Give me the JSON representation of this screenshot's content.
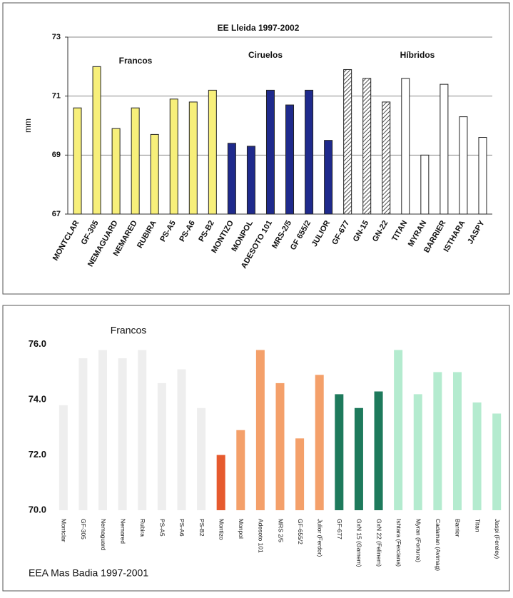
{
  "chart_data": [
    {
      "type": "bar",
      "title": "EE Lleida 1997-2002",
      "ylabel": "mm",
      "categories": [
        "MONTCLAR",
        "GF-305",
        "NEMAGUARD",
        "NEMARED",
        "RUBIRA",
        "PS-A5",
        "PS-A6",
        "PS-B2",
        "MONTIZO",
        "MONPOL",
        "ADESOTO 101",
        "MRS-2/5",
        "GF 655/2",
        "JULIOR",
        "GF-677",
        "GN-15",
        "GN-22",
        "TITAN",
        "MYRAN",
        "BARRIER",
        "ISTHARA",
        "JASPY"
      ],
      "values": [
        70.6,
        72.0,
        69.9,
        70.6,
        69.7,
        70.9,
        70.8,
        71.2,
        69.4,
        69.3,
        71.2,
        70.7,
        71.2,
        69.5,
        71.9,
        71.6,
        70.8,
        71.6,
        69.0,
        71.4,
        70.3,
        69.6
      ],
      "colors": [
        "#f7ef7a",
        "#f7ef7a",
        "#f7ef7a",
        "#f7ef7a",
        "#f7ef7a",
        "#f7ef7a",
        "#f7ef7a",
        "#f7ef7a",
        "#1f2a8c",
        "#1f2a8c",
        "#1f2a8c",
        "#1f2a8c",
        "#1f2a8c",
        "#1f2a8c",
        "#ffffff",
        "#ffffff",
        "#ffffff",
        "#ffffff",
        "#ffffff",
        "#ffffff",
        "#ffffff",
        "#ffffff"
      ],
      "patterns": [
        "solid",
        "solid",
        "solid",
        "solid",
        "solid",
        "solid",
        "solid",
        "solid",
        "solid",
        "solid",
        "solid",
        "solid",
        "solid",
        "solid",
        "hatch",
        "hatch",
        "hatch",
        "solid",
        "solid",
        "solid",
        "solid",
        "solid"
      ],
      "annotations": [
        "Francos",
        "Ciruelos",
        "Híbridos"
      ],
      "ylim": [
        67,
        73
      ],
      "yticks": [
        67,
        69,
        71,
        73
      ],
      "grid": true
    },
    {
      "type": "bar",
      "title": "EEA Mas Badia 1997-2001",
      "categories": [
        "Montclar",
        "GF-305",
        "Nemaguard",
        "Nemared",
        "Rubira",
        "PS-A5",
        "PS-A6",
        "PS-B2",
        "Montizo",
        "Monpol",
        "Adesoto 101",
        "MRS 2/5",
        "GF-655/2",
        "Julior (Ferdor)",
        "GF-677",
        "GxN 15 (Garnem)",
        "GxN 22 (Felinem)",
        "Ishtara (Ferciana)",
        "Myran (Fortuna)",
        "Cadaman (Avimag)",
        "Barrier",
        "Titan",
        "Jaspi (Fereley)"
      ],
      "values": [
        73.8,
        75.5,
        75.8,
        75.5,
        75.8,
        74.6,
        75.1,
        73.7,
        72.0,
        72.9,
        75.8,
        74.6,
        72.6,
        74.9,
        74.2,
        73.7,
        74.3,
        75.8,
        74.2,
        75.0,
        75.0,
        73.9,
        73.5
      ],
      "colors": [
        "#eeeeee",
        "#eeeeee",
        "#eeeeee",
        "#eeeeee",
        "#eeeeee",
        "#eeeeee",
        "#eeeeee",
        "#eeeeee",
        "#e65a2e",
        "#f4a06a",
        "#f4a06a",
        "#f4a06a",
        "#f4a06a",
        "#f4a06a",
        "#1e7a5c",
        "#1e7a5c",
        "#1e7a5c",
        "#b4ebcf",
        "#b4ebcf",
        "#b4ebcf",
        "#b4ebcf",
        "#b4ebcf",
        "#b4ebcf"
      ],
      "annotations": [
        "Francos"
      ],
      "ylim": [
        70,
        77
      ],
      "yticks": [
        {
          "value": 70,
          "label": "70.0"
        },
        {
          "value": 72,
          "label": "72.0"
        },
        {
          "value": 74,
          "label": "74.0"
        },
        {
          "value": 76,
          "label": "76.0"
        }
      ],
      "grid": false
    }
  ]
}
